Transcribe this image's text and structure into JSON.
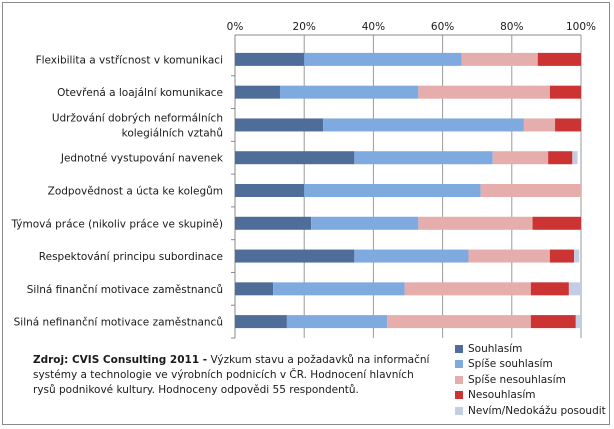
{
  "chart_data": {
    "type": "bar",
    "orientation": "horizontal",
    "stacked": true,
    "percent": true,
    "xlim": [
      0,
      100
    ],
    "x_ticks": [
      "0%",
      "20%",
      "40%",
      "60%",
      "80%",
      "100%"
    ],
    "x_tick_values": [
      0,
      20,
      40,
      60,
      80,
      100
    ],
    "axis_position": "top",
    "grid": true,
    "legend_position": "bottom-right",
    "categories": [
      "Flexibilita a vstřícnost v komunikaci",
      "Otevřená a loajální komunikace",
      "Udržování dobrých neformálních\nkolegiálních vztahů",
      "Jednotné vystupování navenek",
      "Zodpovědnost a úcta ke kolegům",
      "Týmová práce (nikoliv práce ve skupině)",
      "Respektování principu subordinace",
      "Silná finanční motivace zaměstnanců",
      "Silná nefinanční motivace zaměstnanců"
    ],
    "series": [
      {
        "name": "Souhlasím",
        "color": "#4f6d99",
        "values": [
          20,
          13,
          25.5,
          34.5,
          20,
          22,
          34.5,
          11,
          15
        ]
      },
      {
        "name": "Spíše souhlasím",
        "color": "#7faadf",
        "values": [
          45.5,
          40,
          58,
          40,
          51,
          31,
          33,
          38,
          29
        ]
      },
      {
        "name": "Spíše nesouhlasím",
        "color": "#e6adad",
        "values": [
          22,
          38,
          9,
          16,
          29,
          33,
          23.5,
          36.5,
          41.5
        ]
      },
      {
        "name": "Nesouhlasím",
        "color": "#cc3333",
        "values": [
          12.5,
          9,
          7.5,
          7,
          0,
          14,
          7,
          11,
          13
        ]
      },
      {
        "name": "Nevím/Nedokážu posoudit",
        "color": "#c4cee3",
        "values": [
          0,
          0,
          0,
          1.5,
          0,
          0,
          1.5,
          3.5,
          1.5
        ]
      }
    ]
  },
  "source": {
    "label": "Zdroj: CVIS Consulting  2011 -",
    "text": " Výzkum stavu a požadavků na informační systémy a technologie ve výrobních podnicích v ČR. Hodnocení hlavních rysů podnikové kultury. Hodnoceny odpovědi 55 respondentů."
  }
}
